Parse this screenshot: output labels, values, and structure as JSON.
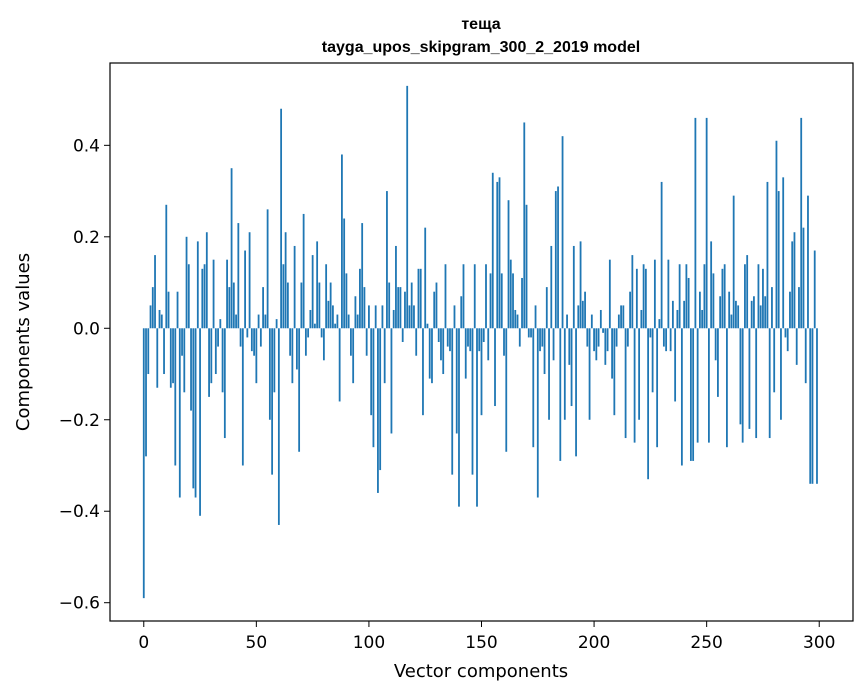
{
  "chart_data": {
    "type": "bar",
    "title": "теща",
    "subtitle": "tayga_upos_skipgram_300_2_2019 model",
    "xlabel": "Vector components",
    "ylabel": "Components values",
    "xlim": [
      -15,
      315
    ],
    "ylim": [
      -0.64,
      0.58
    ],
    "x_ticks": [
      0,
      50,
      100,
      150,
      200,
      250,
      300
    ],
    "x_tick_labels": [
      "0",
      "50",
      "100",
      "150",
      "200",
      "250",
      "300"
    ],
    "y_ticks": [
      -0.6,
      -0.4,
      -0.2,
      0.0,
      0.2,
      0.4
    ],
    "y_tick_labels": [
      "−0.6",
      "−0.4",
      "−0.2",
      "0.0",
      "0.2",
      "0.4"
    ],
    "grid": false,
    "bar_color": "#1f77b4",
    "values": [
      -0.59,
      -0.28,
      -0.1,
      0.05,
      0.09,
      0.16,
      -0.13,
      0.04,
      0.03,
      -0.1,
      0.27,
      0.08,
      -0.13,
      -0.12,
      -0.3,
      0.08,
      -0.37,
      -0.06,
      -0.14,
      0.2,
      0.14,
      -0.18,
      -0.35,
      -0.37,
      0.19,
      -0.41,
      0.13,
      0.14,
      0.21,
      -0.15,
      -0.12,
      0.15,
      -0.1,
      -0.04,
      0.02,
      -0.14,
      -0.24,
      0.15,
      0.09,
      0.35,
      0.1,
      0.03,
      0.23,
      -0.04,
      -0.3,
      0.17,
      -0.02,
      0.21,
      -0.05,
      -0.06,
      -0.12,
      0.03,
      -0.04,
      0.09,
      0.03,
      0.26,
      -0.2,
      -0.32,
      -0.14,
      0.02,
      -0.43,
      0.48,
      0.14,
      0.21,
      0.1,
      -0.06,
      -0.12,
      0.18,
      -0.09,
      -0.27,
      0.1,
      0.25,
      -0.06,
      -0.02,
      0.04,
      0.16,
      0.01,
      0.19,
      0.1,
      -0.02,
      -0.07,
      0.14,
      0.06,
      0.1,
      0.05,
      0.01,
      0.03,
      -0.16,
      0.38,
      0.24,
      0.12,
      0.03,
      -0.06,
      -0.12,
      0.07,
      0.03,
      0.13,
      0.23,
      0.09,
      -0.06,
      0.05,
      -0.19,
      -0.26,
      0.05,
      -0.36,
      -0.31,
      0.05,
      -0.12,
      0.3,
      0.1,
      -0.23,
      0.04,
      0.18,
      0.09,
      0.09,
      -0.03,
      0.08,
      0.53,
      0.05,
      0.1,
      0.05,
      -0.06,
      0.13,
      0.13,
      -0.19,
      0.22,
      0.01,
      -0.11,
      -0.12,
      0.08,
      0.1,
      -0.03,
      -0.07,
      -0.1,
      0.14,
      -0.04,
      -0.05,
      -0.32,
      0.05,
      -0.23,
      -0.39,
      0.07,
      0.14,
      -0.11,
      -0.04,
      -0.05,
      -0.32,
      0.14,
      -0.39,
      -0.05,
      -0.19,
      -0.03,
      0.14,
      -0.07,
      0.12,
      0.34,
      -0.17,
      0.32,
      0.33,
      0.12,
      -0.06,
      -0.27,
      0.28,
      0.15,
      0.12,
      0.04,
      0.03,
      -0.04,
      0.11,
      0.45,
      0.27,
      -0.02,
      -0.02,
      -0.26,
      0.05,
      -0.37,
      -0.05,
      -0.04,
      -0.1,
      0.09,
      -0.2,
      0.18,
      -0.07,
      0.3,
      0.31,
      -0.29,
      0.42,
      -0.2,
      0.03,
      -0.08,
      -0.17,
      0.18,
      -0.28,
      0.05,
      0.19,
      0.06,
      0.08,
      -0.04,
      -0.2,
      0.03,
      -0.05,
      -0.07,
      -0.04,
      0.04,
      -0.01,
      -0.08,
      -0.05,
      0.15,
      -0.11,
      -0.19,
      -0.04,
      0.03,
      0.05,
      0.05,
      -0.24,
      -0.04,
      0.08,
      0.16,
      -0.25,
      0.13,
      -0.2,
      0.04,
      0.14,
      0.13,
      -0.33,
      -0.02,
      -0.14,
      0.15,
      -0.26,
      0.02,
      0.32,
      -0.04,
      -0.05,
      0.15,
      -0.05,
      0.06,
      -0.16,
      0.04,
      0.14,
      -0.3,
      0.06,
      0.14,
      0.11,
      -0.29,
      -0.29,
      0.46,
      -0.25,
      0.08,
      0.04,
      0.14,
      0.46,
      -0.25,
      0.19,
      0.12,
      -0.07,
      -0.15,
      0.07,
      0.13,
      0.14,
      -0.26,
      0.08,
      0.03,
      0.29,
      0.06,
      0.05,
      -0.21,
      -0.25,
      0.14,
      0.16,
      -0.22,
      0.06,
      0.07,
      -0.24,
      0.14,
      0.05,
      0.13,
      0.07,
      0.32,
      -0.24,
      0.09,
      -0.14,
      0.41,
      0.3,
      -0.2,
      0.33,
      -0.02,
      -0.05,
      0.08,
      0.19,
      0.21,
      -0.08,
      0.09,
      0.46,
      0.22,
      -0.12,
      0.29,
      -0.34,
      -0.34,
      0.17,
      -0.34
    ]
  }
}
